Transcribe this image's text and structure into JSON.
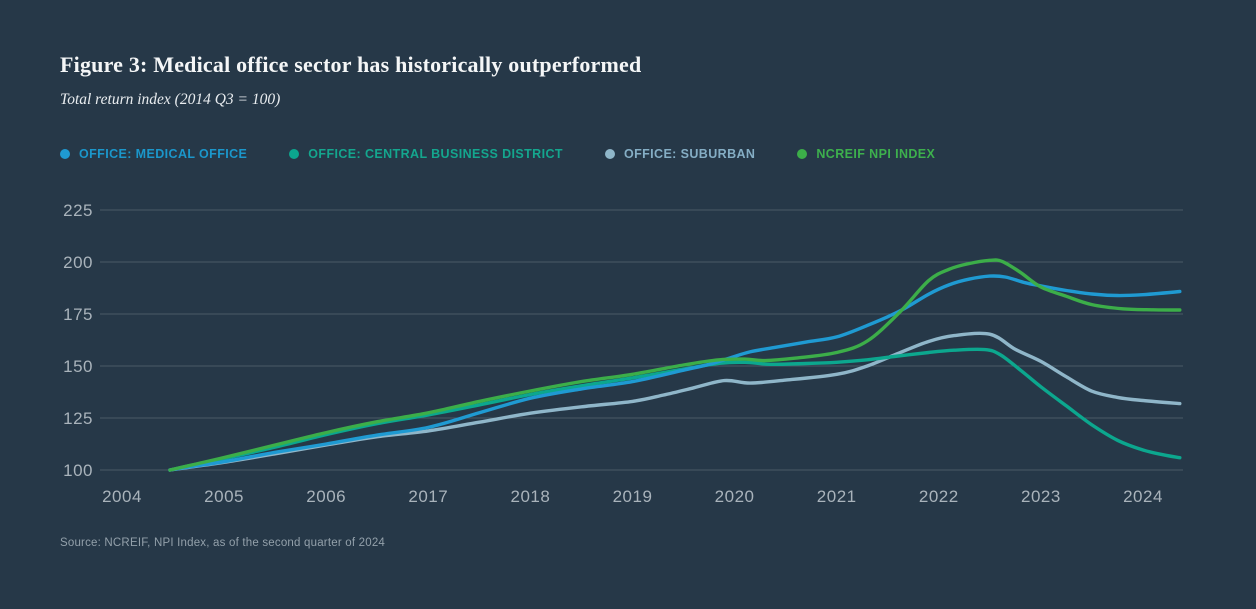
{
  "figure": {
    "title": "Figure 3: Medical office sector has historically outperformed",
    "subtitle": "Total return index (2014 Q3 = 100)",
    "source": "Source: NCREIF, NPI Index, as of the second quarter of 2024"
  },
  "colors": {
    "background": "#263848",
    "grid": "#4a5a66",
    "axis_text": "#a9b3bb",
    "title_text": "#f4f6f7",
    "source_text": "#93a0aa",
    "medical_office": "#1f9ad2",
    "central_business_district": "#0ca78e",
    "suburban": "#8fb6c9",
    "ncreif_npi": "#3cae49"
  },
  "legend": [
    {
      "label": "OFFICE: MEDICAL OFFICE",
      "color": "#1f9ad2",
      "text_color": "#1b97cb"
    },
    {
      "label": "OFFICE: CENTRAL BUSINESS DISTRICT",
      "color": "#0ca78e",
      "text_color": "#14a68e"
    },
    {
      "label": "OFFICE: SUBURBAN",
      "color": "#8fb6c9",
      "text_color": "#85aec5"
    },
    {
      "label": "NCREIF NPI INDEX",
      "color": "#3cae49",
      "text_color": "#3db04d"
    }
  ],
  "chart_data": {
    "type": "line",
    "title": "Figure 3: Medical office sector has historically outperformed",
    "subtitle": "Total return index (2014 Q3 = 100)",
    "grid": "horizontal",
    "legend_position": "top",
    "x_axis": {
      "tick_labels": [
        "2004",
        "2005",
        "2006",
        "2017",
        "2018",
        "2019",
        "2020",
        "2021",
        "2022",
        "2023",
        "2024"
      ],
      "scale_note": "series x values are tick indices, 0 = first label"
    },
    "y_axis": {
      "ticks": [
        100,
        125,
        150,
        175,
        200,
        225
      ],
      "range": [
        100,
        225
      ]
    },
    "series": [
      {
        "name": "OFFICE: SUBURBAN",
        "color": "#8fb6c9",
        "points": [
          [
            0.47,
            100
          ],
          [
            0.7,
            101.6
          ],
          [
            1,
            103.7
          ],
          [
            1.5,
            107.8
          ],
          [
            2,
            112
          ],
          [
            2.5,
            116
          ],
          [
            3,
            118.8
          ],
          [
            3.5,
            123
          ],
          [
            4,
            127.3
          ],
          [
            4.5,
            130.4
          ],
          [
            5,
            133
          ],
          [
            5.3,
            136
          ],
          [
            5.6,
            139.5
          ],
          [
            5.9,
            143
          ],
          [
            6.15,
            141.8
          ],
          [
            6.5,
            143.2
          ],
          [
            7,
            146
          ],
          [
            7.3,
            150
          ],
          [
            7.6,
            156
          ],
          [
            7.9,
            161.8
          ],
          [
            8.15,
            164.6
          ],
          [
            8.5,
            165.3
          ],
          [
            8.75,
            158
          ],
          [
            9,
            152.2
          ],
          [
            9.25,
            144.8
          ],
          [
            9.5,
            137.9
          ],
          [
            9.75,
            134.9
          ],
          [
            10,
            133.4
          ],
          [
            10.36,
            131.9
          ]
        ]
      },
      {
        "name": "OFFICE: CENTRAL BUSINESS DISTRICT",
        "color": "#0ca78e",
        "points": [
          [
            0.47,
            100
          ],
          [
            0.7,
            102.5
          ],
          [
            1,
            105.5
          ],
          [
            1.5,
            111
          ],
          [
            2,
            117
          ],
          [
            2.5,
            122.3
          ],
          [
            3,
            126.5
          ],
          [
            3.5,
            131.3
          ],
          [
            4,
            136.3
          ],
          [
            4.5,
            140.5
          ],
          [
            5,
            144.3
          ],
          [
            5.5,
            148.5
          ],
          [
            5.85,
            151.3
          ],
          [
            6.1,
            151.8
          ],
          [
            6.35,
            150.8
          ],
          [
            6.7,
            151.2
          ],
          [
            7,
            151.8
          ],
          [
            7.3,
            153
          ],
          [
            7.6,
            154.8
          ],
          [
            7.9,
            156.5
          ],
          [
            8.15,
            157.6
          ],
          [
            8.45,
            157.9
          ],
          [
            8.6,
            155.5
          ],
          [
            8.8,
            148
          ],
          [
            9,
            140
          ],
          [
            9.25,
            130.8
          ],
          [
            9.5,
            121.7
          ],
          [
            9.75,
            114.3
          ],
          [
            10,
            109.6
          ],
          [
            10.2,
            107.3
          ],
          [
            10.36,
            105.9
          ]
        ]
      },
      {
        "name": "OFFICE: MEDICAL OFFICE",
        "color": "#1f9ad2",
        "points": [
          [
            0.47,
            100
          ],
          [
            0.7,
            101.8
          ],
          [
            1,
            104
          ],
          [
            1.5,
            108.5
          ],
          [
            2,
            112.5
          ],
          [
            2.5,
            116.8
          ],
          [
            3,
            120.5
          ],
          [
            3.5,
            127.5
          ],
          [
            4,
            134.5
          ],
          [
            4.5,
            139
          ],
          [
            5,
            142.5
          ],
          [
            5.5,
            148
          ],
          [
            5.75,
            150.8
          ],
          [
            5.95,
            153.8
          ],
          [
            6.15,
            156.8
          ],
          [
            6.4,
            159
          ],
          [
            6.7,
            161.5
          ],
          [
            7,
            164
          ],
          [
            7.3,
            169.5
          ],
          [
            7.62,
            176.5
          ],
          [
            7.9,
            184.5
          ],
          [
            8.1,
            189
          ],
          [
            8.3,
            191.8
          ],
          [
            8.5,
            193.2
          ],
          [
            8.65,
            192.8
          ],
          [
            8.85,
            190
          ],
          [
            9,
            188.5
          ],
          [
            9.25,
            186.3
          ],
          [
            9.5,
            184.6
          ],
          [
            9.75,
            183.9
          ],
          [
            10,
            184.3
          ],
          [
            10.36,
            185.8
          ]
        ]
      },
      {
        "name": "NCREIF NPI INDEX",
        "color": "#3cae49",
        "points": [
          [
            0.47,
            100
          ],
          [
            0.7,
            102.6
          ],
          [
            1,
            106
          ],
          [
            1.5,
            112
          ],
          [
            2,
            118
          ],
          [
            2.5,
            123.2
          ],
          [
            3,
            127.5
          ],
          [
            3.5,
            133
          ],
          [
            4,
            138
          ],
          [
            4.5,
            142.5
          ],
          [
            5,
            146
          ],
          [
            5.5,
            150.5
          ],
          [
            5.85,
            153
          ],
          [
            6.1,
            153.3
          ],
          [
            6.3,
            152.6
          ],
          [
            6.6,
            153.8
          ],
          [
            7,
            156.5
          ],
          [
            7.3,
            162
          ],
          [
            7.62,
            176
          ],
          [
            7.9,
            191
          ],
          [
            8.1,
            196.5
          ],
          [
            8.3,
            199.3
          ],
          [
            8.5,
            200.8
          ],
          [
            8.62,
            200.3
          ],
          [
            8.8,
            195
          ],
          [
            9,
            188
          ],
          [
            9.25,
            183.5
          ],
          [
            9.5,
            179.5
          ],
          [
            9.8,
            177.5
          ],
          [
            10.1,
            177
          ],
          [
            10.36,
            176.9
          ]
        ]
      }
    ]
  }
}
